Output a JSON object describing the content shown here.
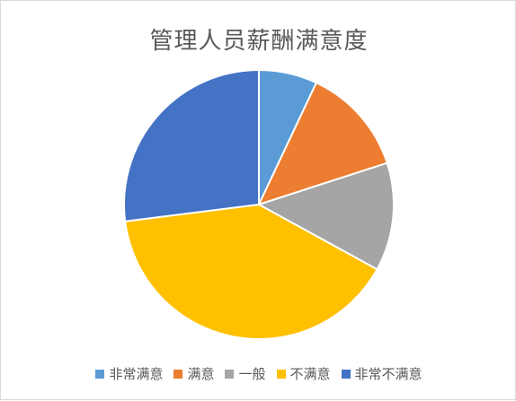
{
  "chart_data": {
    "type": "pie",
    "title": "管理人员薪酬满意度",
    "categories": [
      "非常满意",
      "满意",
      "一般",
      "不满意",
      "非常不满意"
    ],
    "values": [
      7,
      13,
      13,
      40,
      27
    ],
    "colors": [
      "#5B9BD5",
      "#ED7D31",
      "#A5A5A5",
      "#FFC000",
      "#4472C4"
    ],
    "legend": "bottom",
    "start_angle": "top",
    "direction": "clockwise"
  }
}
